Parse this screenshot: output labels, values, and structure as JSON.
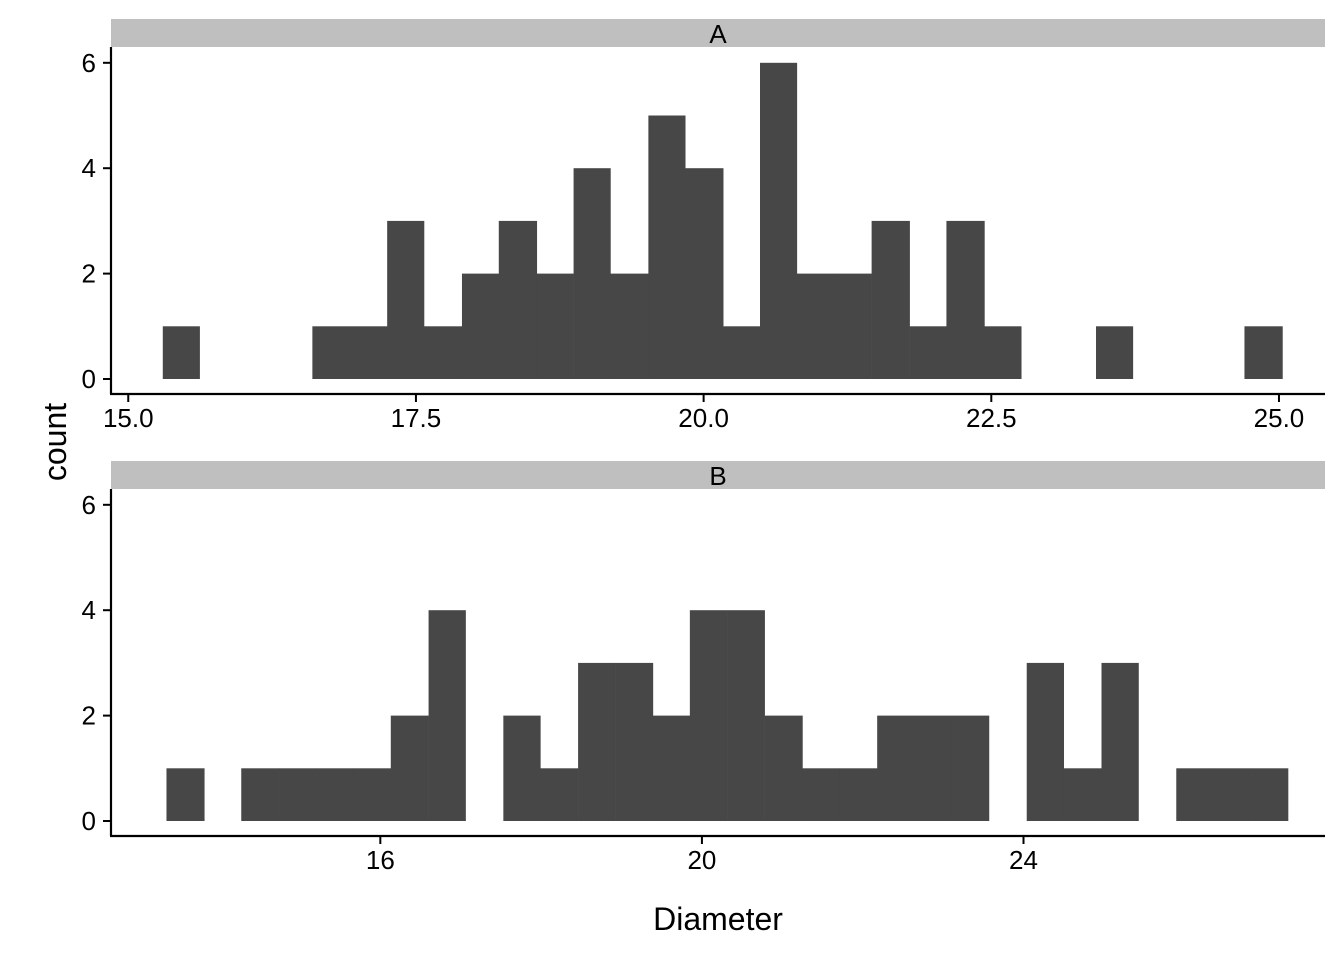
{
  "chart_data": {
    "type": "histogram",
    "layout": "facet_wrap",
    "xlabel": "Diameter",
    "ylabel": "count",
    "bar_color": "#474747",
    "strip_color": "#bfbfbf",
    "grid": false,
    "facets": [
      {
        "label": "A",
        "xlim": [
          14.85,
          25.4
        ],
        "ylim": [
          0,
          6.3
        ],
        "xticks": [
          15.0,
          17.5,
          20.0,
          22.5,
          25.0
        ],
        "xtick_labels": [
          "15.0",
          "17.5",
          "20.0",
          "22.5",
          "25.0"
        ],
        "yticks": [
          0,
          2,
          4,
          6
        ],
        "ytick_labels": [
          "0",
          "2",
          "4",
          "6"
        ],
        "bin_width": 0.324,
        "bins": [
          {
            "x0": 15.3,
            "x1": 15.62,
            "count": 1
          },
          {
            "x0": 16.6,
            "x1": 16.92,
            "count": 1
          },
          {
            "x0": 16.92,
            "x1": 17.25,
            "count": 1
          },
          {
            "x0": 17.25,
            "x1": 17.57,
            "count": 3
          },
          {
            "x0": 17.57,
            "x1": 17.9,
            "count": 1
          },
          {
            "x0": 17.9,
            "x1": 18.22,
            "count": 2
          },
          {
            "x0": 18.22,
            "x1": 18.55,
            "count": 3
          },
          {
            "x0": 18.55,
            "x1": 18.87,
            "count": 2
          },
          {
            "x0": 18.87,
            "x1": 19.19,
            "count": 4
          },
          {
            "x0": 19.19,
            "x1": 19.52,
            "count": 2
          },
          {
            "x0": 19.52,
            "x1": 19.84,
            "count": 5
          },
          {
            "x0": 19.84,
            "x1": 20.17,
            "count": 4
          },
          {
            "x0": 20.17,
            "x1": 20.49,
            "count": 1
          },
          {
            "x0": 20.49,
            "x1": 20.81,
            "count": 6
          },
          {
            "x0": 20.81,
            "x1": 21.14,
            "count": 2
          },
          {
            "x0": 21.14,
            "x1": 21.46,
            "count": 2
          },
          {
            "x0": 21.46,
            "x1": 21.79,
            "count": 3
          },
          {
            "x0": 21.79,
            "x1": 22.11,
            "count": 1
          },
          {
            "x0": 22.11,
            "x1": 22.44,
            "count": 3
          },
          {
            "x0": 22.44,
            "x1": 22.76,
            "count": 1
          },
          {
            "x0": 23.41,
            "x1": 23.73,
            "count": 1
          },
          {
            "x0": 24.7,
            "x1": 25.03,
            "count": 1
          }
        ]
      },
      {
        "label": "B",
        "xlim": [
          12.65,
          27.75
        ],
        "ylim": [
          0,
          6.3
        ],
        "xticks": [
          16,
          20,
          24
        ],
        "xtick_labels": [
          "16",
          "20",
          "24"
        ],
        "yticks": [
          0,
          2,
          4,
          6
        ],
        "ytick_labels": [
          "0",
          "2",
          "4",
          "6"
        ],
        "bin_width": 0.464,
        "bins": [
          {
            "x0": 13.34,
            "x1": 13.81,
            "count": 1
          },
          {
            "x0": 14.27,
            "x1": 14.74,
            "count": 1
          },
          {
            "x0": 14.74,
            "x1": 15.2,
            "count": 1
          },
          {
            "x0": 15.2,
            "x1": 15.67,
            "count": 1
          },
          {
            "x0": 15.67,
            "x1": 16.13,
            "count": 1
          },
          {
            "x0": 16.13,
            "x1": 16.6,
            "count": 2
          },
          {
            "x0": 16.6,
            "x1": 17.06,
            "count": 4
          },
          {
            "x0": 17.53,
            "x1": 17.99,
            "count": 2
          },
          {
            "x0": 17.99,
            "x1": 18.46,
            "count": 1
          },
          {
            "x0": 18.46,
            "x1": 18.92,
            "count": 3
          },
          {
            "x0": 18.92,
            "x1": 19.39,
            "count": 3
          },
          {
            "x0": 19.39,
            "x1": 19.85,
            "count": 2
          },
          {
            "x0": 19.85,
            "x1": 20.32,
            "count": 4
          },
          {
            "x0": 20.32,
            "x1": 20.78,
            "count": 4
          },
          {
            "x0": 20.78,
            "x1": 21.25,
            "count": 2
          },
          {
            "x0": 21.25,
            "x1": 21.71,
            "count": 1
          },
          {
            "x0": 21.71,
            "x1": 22.18,
            "count": 1
          },
          {
            "x0": 22.18,
            "x1": 22.64,
            "count": 2
          },
          {
            "x0": 22.64,
            "x1": 23.11,
            "count": 2
          },
          {
            "x0": 23.11,
            "x1": 23.57,
            "count": 2
          },
          {
            "x0": 24.04,
            "x1": 24.5,
            "count": 3
          },
          {
            "x0": 24.5,
            "x1": 24.97,
            "count": 1
          },
          {
            "x0": 24.97,
            "x1": 25.43,
            "count": 3
          },
          {
            "x0": 25.9,
            "x1": 26.36,
            "count": 1
          },
          {
            "x0": 26.36,
            "x1": 26.83,
            "count": 1
          },
          {
            "x0": 26.83,
            "x1": 27.29,
            "count": 1
          }
        ]
      }
    ]
  }
}
